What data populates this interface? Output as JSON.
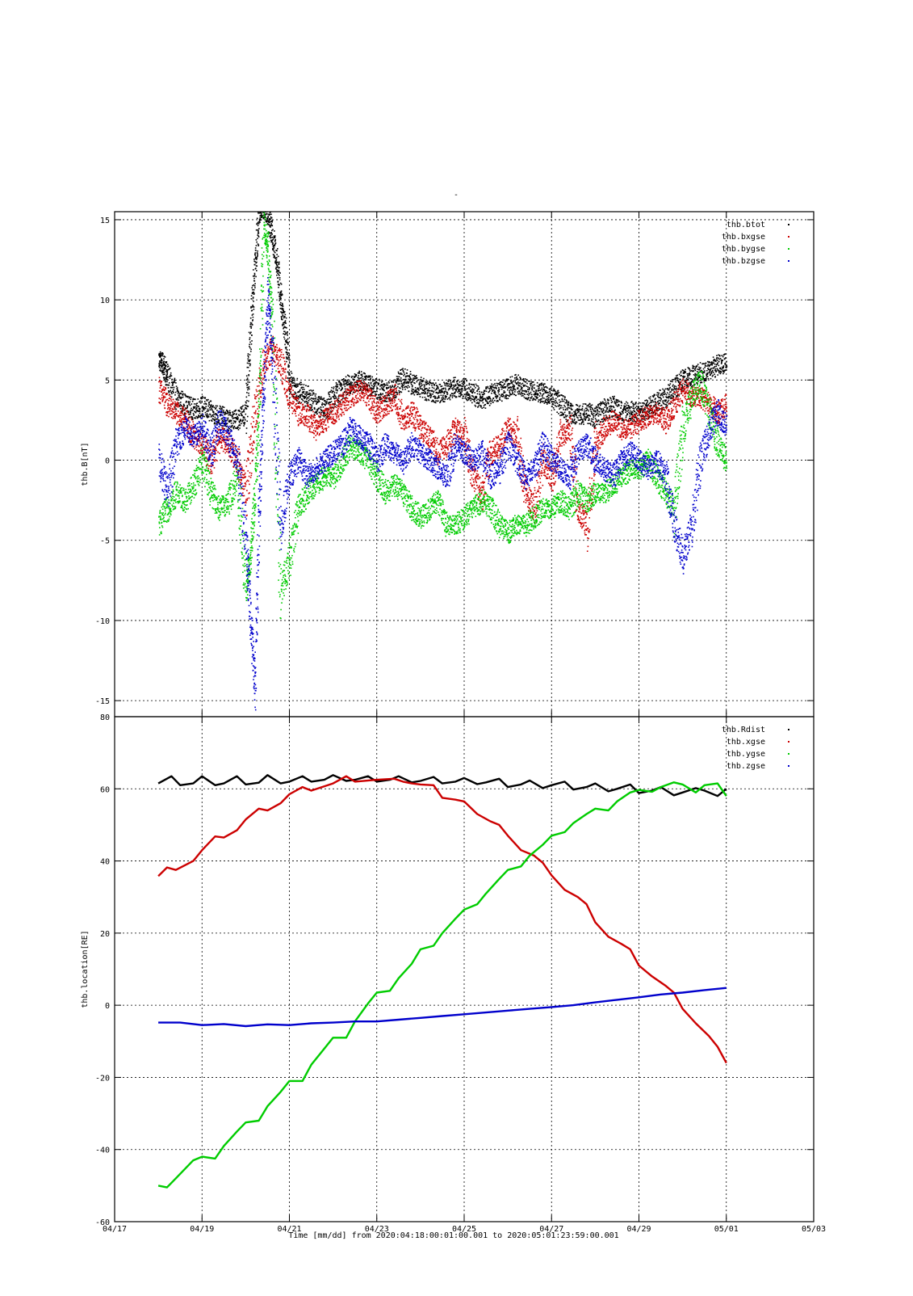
{
  "page": {
    "title_mark": "-"
  },
  "axes": {
    "x": {
      "label": "Time [mm/dd]  from 2020:04:18:00:01:00.001  to  2020:05:01:23:59:00.001",
      "range_days_from_0417": [
        0,
        16
      ],
      "tick_labels": [
        "04/17",
        "04/19",
        "04/21",
        "04/23",
        "04/25",
        "04/27",
        "04/29",
        "05/01",
        "05/03"
      ]
    }
  },
  "chart_data": [
    {
      "type": "scatter",
      "ylabel": "thb.B[nT]",
      "ylim": [
        -16,
        15.5
      ],
      "yticks": [
        -15,
        -10,
        -5,
        0,
        5,
        10,
        15
      ],
      "grid": true,
      "legend_position": "top-right",
      "x_unit": "days since 04/17 00:00",
      "series": [
        {
          "name": "thb.btot",
          "color": "#000000",
          "x": [
            1.0,
            1.1,
            1.2,
            1.4,
            1.6,
            1.8,
            2.0,
            2.2,
            2.4,
            2.6,
            2.8,
            3.0,
            3.1,
            3.2,
            3.3,
            3.4,
            3.5,
            3.6,
            3.7,
            3.8,
            3.9,
            4.0,
            4.2,
            4.4,
            4.6,
            4.8,
            5.0,
            5.2,
            5.4,
            5.6,
            5.8,
            6.0,
            6.2,
            6.4,
            6.6,
            6.8,
            7.0,
            7.2,
            7.4,
            7.6,
            7.8,
            8.0,
            8.2,
            8.4,
            8.6,
            8.8,
            9.0,
            9.2,
            9.4,
            9.6,
            9.8,
            10.0,
            10.2,
            10.4,
            10.6,
            10.8,
            11.0,
            11.2,
            11.4,
            11.6,
            11.8,
            12.0,
            12.2,
            12.4,
            12.6,
            12.8,
            13.0,
            13.2,
            13.4,
            13.6,
            13.8,
            14.0
          ],
          "y": [
            6.3,
            6.0,
            5.2,
            4.0,
            3.5,
            3.2,
            3.4,
            3.0,
            2.8,
            2.5,
            2.6,
            3.0,
            8.0,
            12.0,
            15.5,
            15.8,
            15.4,
            14.0,
            12.5,
            10.0,
            8.0,
            5.0,
            4.3,
            4.0,
            3.5,
            3.2,
            4.0,
            4.5,
            4.8,
            5.0,
            4.7,
            4.5,
            4.2,
            4.5,
            5.2,
            4.8,
            4.6,
            4.3,
            4.2,
            4.4,
            4.6,
            4.5,
            4.2,
            3.8,
            4.2,
            4.3,
            4.5,
            4.8,
            4.5,
            4.3,
            4.2,
            4.0,
            3.5,
            3.0,
            2.8,
            3.0,
            2.7,
            3.2,
            3.4,
            3.0,
            3.1,
            3.0,
            3.2,
            3.6,
            4.0,
            4.5,
            5.0,
            5.3,
            5.5,
            5.7,
            6.0,
            6.1
          ]
        },
        {
          "name": "thb.bxgse",
          "color": "#cc0000",
          "x": [
            1.0,
            1.2,
            1.4,
            1.6,
            1.8,
            2.0,
            2.2,
            2.4,
            2.6,
            2.8,
            3.0,
            3.2,
            3.4,
            3.6,
            3.8,
            4.0,
            4.2,
            4.4,
            4.6,
            4.8,
            5.0,
            5.2,
            5.4,
            5.6,
            5.8,
            6.0,
            6.2,
            6.4,
            6.6,
            6.8,
            7.0,
            7.2,
            7.4,
            7.6,
            7.8,
            8.0,
            8.2,
            8.4,
            8.6,
            8.8,
            9.0,
            9.2,
            9.4,
            9.6,
            9.8,
            10.0,
            10.2,
            10.4,
            10.6,
            10.8,
            11.0,
            11.2,
            11.4,
            11.6,
            11.8,
            12.0,
            12.2,
            12.4,
            12.6,
            12.8,
            13.0,
            13.2,
            13.4,
            13.6,
            13.8,
            14.0
          ],
          "y": [
            4.5,
            3.5,
            3.0,
            2.5,
            1.5,
            1.0,
            0.0,
            1.5,
            1.0,
            0.0,
            -2.0,
            3.0,
            6.0,
            7.0,
            6.0,
            4.0,
            3.0,
            2.8,
            2.0,
            2.5,
            3.0,
            3.5,
            4.0,
            4.5,
            4.0,
            3.0,
            3.5,
            4.0,
            2.5,
            3.0,
            2.0,
            1.5,
            0.5,
            1.0,
            2.0,
            1.5,
            -1.0,
            -2.0,
            0.5,
            1.0,
            2.0,
            1.5,
            -2.0,
            -3.0,
            0.0,
            -1.0,
            1.5,
            2.0,
            -3.0,
            -4.0,
            1.0,
            2.0,
            2.5,
            2.0,
            2.0,
            2.5,
            2.8,
            3.0,
            2.5,
            3.5,
            4.5,
            4.0,
            4.0,
            3.5,
            3.0,
            3.5
          ]
        },
        {
          "name": "thb.bygse",
          "color": "#00cc00",
          "x": [
            1.0,
            1.2,
            1.4,
            1.6,
            1.8,
            2.0,
            2.2,
            2.4,
            2.6,
            2.8,
            3.0,
            3.1,
            3.2,
            3.3,
            3.4,
            3.5,
            3.6,
            3.8,
            4.0,
            4.2,
            4.4,
            4.6,
            4.8,
            5.0,
            5.2,
            5.4,
            5.6,
            5.8,
            6.0,
            6.2,
            6.4,
            6.6,
            6.8,
            7.0,
            7.2,
            7.4,
            7.6,
            7.8,
            8.0,
            8.2,
            8.4,
            8.6,
            8.8,
            9.0,
            9.2,
            9.4,
            9.6,
            9.8,
            10.0,
            10.2,
            10.4,
            10.6,
            10.8,
            11.0,
            11.2,
            11.4,
            11.6,
            11.8,
            12.0,
            12.2,
            12.4,
            12.6,
            12.8,
            13.0,
            13.2,
            13.4,
            13.6,
            13.8,
            14.0
          ],
          "y": [
            -4.0,
            -3.0,
            -2.0,
            -2.5,
            -1.5,
            0.0,
            -2.0,
            -3.0,
            -2.5,
            -1.0,
            -8.0,
            -6.0,
            -2.0,
            3.0,
            15.0,
            13.0,
            8.0,
            -8.0,
            -6.0,
            -3.0,
            -2.0,
            -1.5,
            -1.0,
            -1.0,
            0.0,
            1.0,
            0.5,
            0.0,
            -1.0,
            -2.0,
            -1.5,
            -2.0,
            -3.0,
            -3.5,
            -3.0,
            -2.5,
            -4.0,
            -4.0,
            -3.5,
            -3.0,
            -2.5,
            -3.0,
            -4.0,
            -4.5,
            -4.0,
            -4.0,
            -3.5,
            -3.0,
            -3.0,
            -2.5,
            -3.0,
            -2.0,
            -2.5,
            -2.0,
            -2.0,
            -1.5,
            -1.0,
            -0.5,
            -0.5,
            0.0,
            -1.0,
            -2.0,
            -3.0,
            2.0,
            4.0,
            5.0,
            3.0,
            1.0,
            0.0
          ]
        },
        {
          "name": "thb.bzgse",
          "color": "#0000cc",
          "x": [
            1.0,
            1.2,
            1.4,
            1.6,
            1.8,
            2.0,
            2.2,
            2.4,
            2.6,
            2.8,
            3.0,
            3.1,
            3.2,
            3.3,
            3.4,
            3.5,
            3.6,
            3.8,
            4.0,
            4.2,
            4.4,
            4.6,
            4.8,
            5.0,
            5.2,
            5.4,
            5.6,
            5.8,
            6.0,
            6.2,
            6.4,
            6.6,
            6.8,
            7.0,
            7.2,
            7.4,
            7.6,
            7.8,
            8.0,
            8.2,
            8.4,
            8.6,
            8.8,
            9.0,
            9.2,
            9.4,
            9.6,
            9.8,
            10.0,
            10.2,
            10.4,
            10.6,
            10.8,
            11.0,
            11.2,
            11.4,
            11.6,
            11.8,
            12.0,
            12.2,
            12.4,
            12.6,
            12.8,
            13.0,
            13.2,
            13.4,
            13.6,
            13.8,
            14.0
          ],
          "y": [
            0.0,
            -2.0,
            1.0,
            2.0,
            1.5,
            2.0,
            0.5,
            2.5,
            1.5,
            0.0,
            -5.0,
            -10.0,
            -14.0,
            -3.0,
            4.0,
            10.0,
            6.0,
            -4.0,
            -1.0,
            0.0,
            -1.0,
            -0.5,
            0.0,
            0.5,
            1.0,
            2.0,
            1.5,
            1.0,
            0.0,
            1.0,
            0.5,
            0.0,
            1.0,
            0.5,
            0.0,
            -0.5,
            -1.0,
            1.0,
            0.5,
            0.0,
            0.5,
            -1.0,
            -0.5,
            1.0,
            0.0,
            -1.0,
            -0.5,
            1.0,
            0.0,
            -0.5,
            -1.0,
            0.5,
            1.0,
            0.0,
            -0.5,
            -1.0,
            0.0,
            0.5,
            0.0,
            -0.5,
            0.0,
            -1.0,
            -4.0,
            -6.0,
            -4.0,
            0.0,
            2.0,
            3.0,
            2.0
          ]
        }
      ]
    },
    {
      "type": "line",
      "ylabel": "thb.location[RE]",
      "ylim": [
        -60,
        80
      ],
      "yticks": [
        -60,
        -40,
        -20,
        0,
        20,
        40,
        60,
        80
      ],
      "grid": true,
      "legend_position": "top-right",
      "x_unit": "days since 04/17 00:00",
      "series": [
        {
          "name": "thb.Rdist",
          "color": "#000000",
          "x": [
            1.0,
            1.3,
            1.5,
            1.8,
            2.0,
            2.3,
            2.5,
            2.8,
            3.0,
            3.3,
            3.5,
            3.8,
            4.0,
            4.3,
            4.5,
            4.8,
            5.0,
            5.3,
            5.5,
            5.8,
            6.0,
            6.3,
            6.5,
            6.8,
            7.0,
            7.3,
            7.5,
            7.8,
            8.0,
            8.3,
            8.5,
            8.8,
            9.0,
            9.3,
            9.5,
            9.8,
            10.0,
            10.3,
            10.5,
            10.8,
            11.0,
            11.3,
            11.5,
            11.8,
            12.0,
            12.3,
            12.5,
            12.8,
            13.0,
            13.3,
            13.5,
            13.8,
            14.0
          ],
          "y": [
            61.5,
            63.5,
            61.0,
            61.5,
            63.5,
            61.0,
            61.5,
            63.5,
            61.2,
            61.7,
            63.8,
            61.5,
            62.0,
            63.5,
            62.0,
            62.5,
            63.8,
            62.2,
            62.5,
            63.5,
            62.0,
            62.5,
            63.5,
            61.8,
            62.2,
            63.3,
            61.5,
            62.0,
            63.0,
            61.3,
            61.8,
            62.8,
            60.5,
            61.2,
            62.3,
            60.2,
            61.0,
            62.0,
            59.8,
            60.5,
            61.5,
            59.3,
            60.0,
            61.2,
            58.8,
            59.5,
            60.5,
            58.2,
            59.0,
            60.2,
            59.5,
            58.0,
            60.0
          ]
        },
        {
          "name": "thb.xgse",
          "color": "#cc0000",
          "x": [
            1.0,
            1.2,
            1.4,
            1.8,
            2.0,
            2.3,
            2.5,
            2.8,
            3.0,
            3.3,
            3.5,
            3.8,
            4.0,
            4.3,
            4.5,
            5.0,
            5.3,
            5.5,
            6.0,
            6.4,
            6.6,
            6.8,
            7.0,
            7.3,
            7.5,
            7.8,
            8.0,
            8.3,
            8.6,
            8.8,
            9.0,
            9.3,
            9.6,
            9.8,
            10.0,
            10.3,
            10.6,
            10.8,
            11.0,
            11.3,
            11.6,
            11.8,
            12.0,
            12.3,
            12.6,
            12.8,
            13.0,
            13.3,
            13.6,
            13.8,
            14.0
          ],
          "y": [
            35.8,
            38.2,
            37.5,
            40.0,
            43.0,
            46.8,
            46.5,
            48.5,
            51.5,
            54.5,
            54.0,
            56.0,
            58.5,
            60.5,
            59.5,
            61.5,
            63.5,
            62.0,
            62.5,
            62.8,
            62.0,
            61.5,
            61.2,
            61.0,
            57.5,
            57.0,
            56.5,
            53.0,
            51.0,
            50.0,
            47.0,
            43.0,
            41.5,
            39.5,
            36.0,
            32.0,
            30.0,
            28.0,
            23.0,
            19.0,
            17.0,
            15.5,
            11.0,
            8.0,
            5.5,
            3.5,
            -1.0,
            -5.0,
            -8.5,
            -11.5,
            -16.0
          ]
        },
        {
          "name": "thb.ygse",
          "color": "#00cc00",
          "x": [
            1.0,
            1.2,
            1.4,
            1.8,
            2.0,
            2.3,
            2.5,
            2.8,
            3.0,
            3.3,
            3.5,
            3.8,
            4.0,
            4.3,
            4.5,
            4.8,
            5.0,
            5.3,
            5.5,
            5.8,
            6.0,
            6.3,
            6.5,
            6.8,
            7.0,
            7.3,
            7.5,
            7.8,
            8.0,
            8.3,
            8.5,
            8.8,
            9.0,
            9.3,
            9.5,
            9.8,
            10.0,
            10.3,
            10.5,
            10.8,
            11.0,
            11.3,
            11.5,
            11.8,
            12.0,
            12.3,
            12.5,
            12.8,
            13.0,
            13.3,
            13.5,
            13.8,
            14.0
          ],
          "y": [
            -50.0,
            -50.5,
            -48.0,
            -43.0,
            -42.0,
            -42.5,
            -39.0,
            -35.0,
            -32.5,
            -32.0,
            -28.0,
            -24.0,
            -21.0,
            -21.0,
            -16.5,
            -12.0,
            -9.0,
            -9.0,
            -4.5,
            0.5,
            3.5,
            4.0,
            7.5,
            11.5,
            15.5,
            16.5,
            20.0,
            24.0,
            26.5,
            28.0,
            31.0,
            35.0,
            37.5,
            38.5,
            41.5,
            44.5,
            47.0,
            48.0,
            50.5,
            53.0,
            54.5,
            54.0,
            56.5,
            59.0,
            59.7,
            59.2,
            60.5,
            61.8,
            61.2,
            59.0,
            61.0,
            61.5,
            58.0
          ]
        },
        {
          "name": "thb.zgse",
          "color": "#0000cc",
          "x": [
            1.0,
            1.5,
            2.0,
            2.5,
            3.0,
            3.5,
            4.0,
            4.5,
            5.0,
            5.5,
            6.0,
            6.5,
            7.0,
            7.5,
            8.0,
            8.5,
            9.0,
            9.5,
            10.0,
            10.5,
            11.0,
            11.5,
            12.0,
            12.5,
            13.0,
            13.5,
            14.0
          ],
          "y": [
            -4.8,
            -4.8,
            -5.5,
            -5.2,
            -5.8,
            -5.3,
            -5.5,
            -5.0,
            -4.8,
            -4.5,
            -4.5,
            -4.0,
            -3.5,
            -3.0,
            -2.5,
            -2.0,
            -1.5,
            -1.0,
            -0.5,
            0.0,
            0.8,
            1.5,
            2.2,
            3.0,
            3.5,
            4.2,
            4.8
          ]
        }
      ]
    }
  ]
}
